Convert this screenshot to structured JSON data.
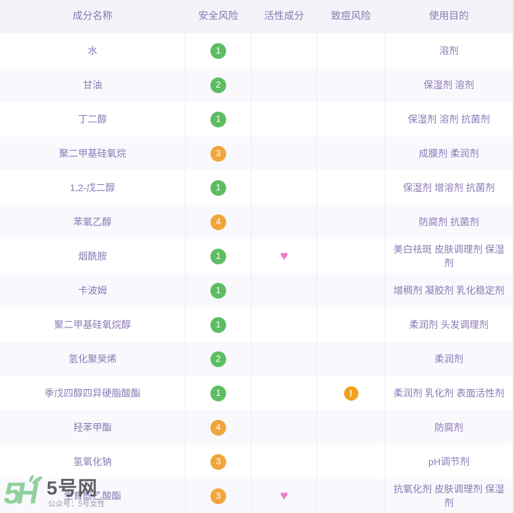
{
  "table": {
    "columns": [
      "成分名称",
      "安全风险",
      "活性成分",
      "致痘风险",
      "使用目的"
    ],
    "rows": [
      {
        "name": "水",
        "safety": "1",
        "safety_color": "green",
        "active": false,
        "acne": false,
        "purpose": "溶剂"
      },
      {
        "name": "甘油",
        "safety": "2",
        "safety_color": "green",
        "active": false,
        "acne": false,
        "purpose": "保湿剂 溶剂"
      },
      {
        "name": "丁二醇",
        "safety": "1",
        "safety_color": "green",
        "active": false,
        "acne": false,
        "purpose": "保湿剂 溶剂 抗菌剂"
      },
      {
        "name": "聚二甲基硅氧烷",
        "safety": "3",
        "safety_color": "orange",
        "active": false,
        "acne": false,
        "purpose": "成膜剂 柔润剂"
      },
      {
        "name": "1,2-戊二醇",
        "safety": "1",
        "safety_color": "green",
        "active": false,
        "acne": false,
        "purpose": "保湿剂 增溶剂 抗菌剂"
      },
      {
        "name": "苯氧乙醇",
        "safety": "4",
        "safety_color": "orange",
        "active": false,
        "acne": false,
        "purpose": "防腐剂 抗菌剂"
      },
      {
        "name": "烟酰胺",
        "safety": "1",
        "safety_color": "green",
        "active": true,
        "acne": false,
        "purpose": "美白祛斑 皮肤调理剂 保湿剂"
      },
      {
        "name": "卡波姆",
        "safety": "1",
        "safety_color": "green",
        "active": false,
        "acne": false,
        "purpose": "增稠剂 凝胶剂 乳化稳定剂"
      },
      {
        "name": "聚二甲基硅氧烷醇",
        "safety": "1",
        "safety_color": "green",
        "active": false,
        "acne": false,
        "purpose": "柔润剂 头发调理剂"
      },
      {
        "name": "氢化聚癸烯",
        "safety": "2",
        "safety_color": "green",
        "active": false,
        "acne": false,
        "purpose": "柔润剂"
      },
      {
        "name": "季戊四醇四异硬脂酸酯",
        "safety": "1",
        "safety_color": "green",
        "active": false,
        "acne": true,
        "purpose": "柔润剂 乳化剂 表面活性剂"
      },
      {
        "name": "羟苯甲酯",
        "safety": "4",
        "safety_color": "orange",
        "active": false,
        "acne": false,
        "purpose": "防腐剂"
      },
      {
        "name": "氢氧化钠",
        "safety": "3",
        "safety_color": "orange",
        "active": false,
        "acne": false,
        "purpose": "pH调节剂"
      },
      {
        "name": "生育酚乙酸酯",
        "safety": "3",
        "safety_color": "orange",
        "active": true,
        "acne": false,
        "purpose": "抗氧化剂 皮肤调理剂 保湿剂"
      }
    ]
  },
  "icons": {
    "active_glyph": "♥",
    "acne_glyph": "!"
  },
  "colors": {
    "safety_green": "#5dbd62",
    "safety_orange": "#f0a63c",
    "heart_pink": "#e77fc1",
    "acne_orange": "#f2a11f",
    "text_purple": "#8a79b4",
    "header_bg": "#f5f3fa",
    "row_alt_bg": "#f9f8fd",
    "logo_green": "#90d09c"
  },
  "watermark": {
    "logo_text": "5H",
    "site_name": "5号网",
    "slogan": "公众号：5号女性"
  }
}
